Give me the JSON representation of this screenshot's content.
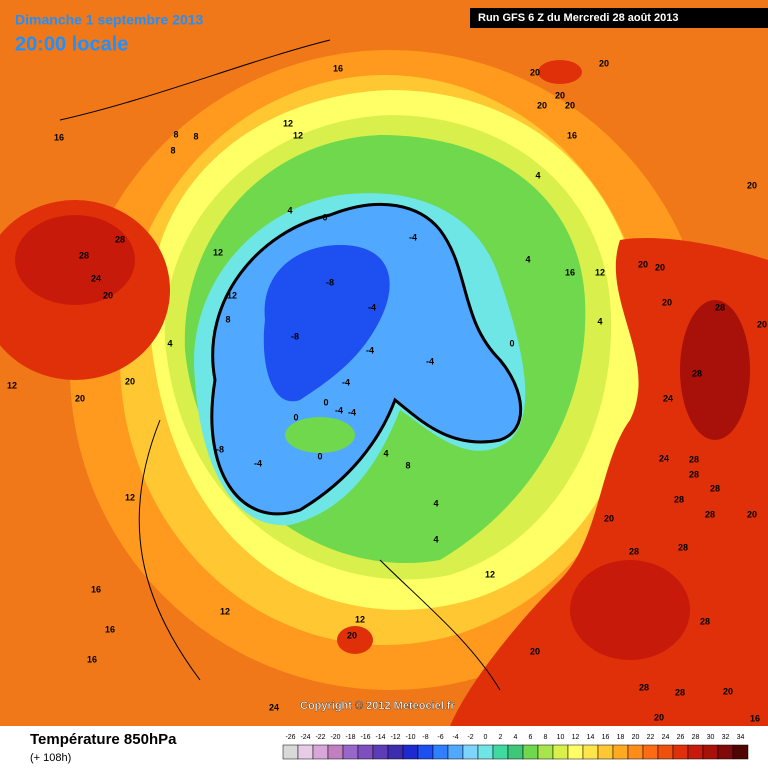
{
  "header": {
    "date": "Dimanche 1 septembre 2013",
    "time": "20:00 locale",
    "run": "Run GFS 6 Z du Mercredi 28 août 2013"
  },
  "copyright": "Copyright © 2012 Meteociel.fr",
  "footer": {
    "title": "Température 850hPa",
    "lead": "(+ 108h)"
  },
  "scale": {
    "ticks": [
      -26,
      -24,
      -22,
      -20,
      -18,
      -16,
      -14,
      -12,
      -10,
      -8,
      -6,
      -4,
      -2,
      0,
      2,
      4,
      6,
      8,
      10,
      12,
      14,
      16,
      18,
      20,
      22,
      24,
      26,
      28,
      30,
      32,
      34
    ],
    "colors": [
      "#d9d9d9",
      "#e6cce6",
      "#d9a6d9",
      "#c080c0",
      "#9966cc",
      "#7f4fbf",
      "#5c3db8",
      "#3c2cb0",
      "#1e2ad0",
      "#1e4ff0",
      "#2f7fff",
      "#50a8ff",
      "#7fd4ff",
      "#6ee6e6",
      "#40d9a0",
      "#3cc878",
      "#6fd84c",
      "#a6e64c",
      "#d9f04c",
      "#ffff66",
      "#ffe44c",
      "#ffc832",
      "#ffaa20",
      "#ff8c1a",
      "#ff6a14",
      "#f0500f",
      "#e0300a",
      "#c81a0a",
      "#a8100a",
      "#800a0a",
      "#500505"
    ]
  },
  "map": {
    "labels": [
      28,
      28,
      24,
      20,
      20,
      20,
      12,
      16,
      16,
      16,
      12,
      -8,
      -4,
      0,
      -8,
      -4,
      -4,
      -4,
      0,
      4,
      4,
      4,
      16,
      12,
      20,
      20,
      20,
      28,
      28,
      24,
      24,
      28,
      28,
      28,
      28,
      28,
      20,
      28,
      28,
      28,
      20,
      28,
      28,
      20,
      20,
      24,
      12,
      20,
      12,
      4,
      8,
      4,
      4,
      20,
      20,
      20,
      20,
      20,
      16,
      20,
      20,
      20,
      16,
      16,
      12,
      12,
      12,
      12,
      8,
      8,
      8,
      8,
      16,
      12,
      4,
      4,
      0,
      -4,
      -4,
      -4,
      -4,
      0,
      0,
      -8
    ]
  }
}
